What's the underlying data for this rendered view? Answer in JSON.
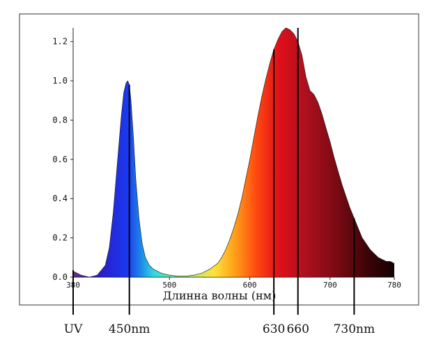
{
  "chart_data": {
    "type": "area",
    "title": "",
    "xlabel": "Длинна волны (нм)",
    "ylabel": "",
    "xlim": [
      380,
      780
    ],
    "ylim": [
      0,
      1.27
    ],
    "x_ticks": [
      380,
      500,
      600,
      700,
      780
    ],
    "x_tick_labels": [
      "380",
      "500",
      "600",
      "700",
      "780"
    ],
    "y_ticks": [
      0,
      0.2,
      0.4,
      0.6,
      0.8,
      1.0,
      1.2
    ],
    "y_tick_labels": [
      "0.0",
      "0.2",
      "0.4",
      "0.6",
      "0.8",
      "1.0",
      "1.2"
    ],
    "grid": false,
    "series": [
      {
        "x": [
          380,
          385,
          390,
          400,
          410,
          420,
          425,
          430,
          435,
          440,
          443,
          446,
          448,
          450,
          452,
          455,
          458,
          462,
          466,
          470,
          475,
          480,
          490,
          500,
          510,
          520,
          530,
          540,
          550,
          560,
          565,
          570,
          575,
          580,
          585,
          590,
          595,
          600,
          605,
          610,
          615,
          620,
          625,
          630,
          635,
          640,
          645,
          650,
          655,
          660,
          665,
          670,
          675,
          680,
          685,
          690,
          695,
          700,
          705,
          710,
          715,
          720,
          725,
          730,
          735,
          740,
          745,
          750,
          755,
          760,
          765,
          770,
          775,
          780
        ],
        "values": [
          0.03,
          0.02,
          0.01,
          0.0,
          0.01,
          0.06,
          0.15,
          0.33,
          0.58,
          0.82,
          0.94,
          0.99,
          1.0,
          0.98,
          0.9,
          0.72,
          0.5,
          0.3,
          0.17,
          0.1,
          0.06,
          0.04,
          0.02,
          0.01,
          0.005,
          0.005,
          0.01,
          0.02,
          0.04,
          0.07,
          0.1,
          0.14,
          0.19,
          0.25,
          0.32,
          0.4,
          0.5,
          0.6,
          0.71,
          0.82,
          0.92,
          1.01,
          1.09,
          1.16,
          1.21,
          1.25,
          1.27,
          1.26,
          1.24,
          1.2,
          1.13,
          1.02,
          0.95,
          0.93,
          0.89,
          0.83,
          0.76,
          0.69,
          0.61,
          0.54,
          0.47,
          0.41,
          0.35,
          0.3,
          0.25,
          0.2,
          0.17,
          0.14,
          0.12,
          0.1,
          0.09,
          0.08,
          0.08,
          0.07
        ]
      }
    ],
    "markers": [
      {
        "x": 380,
        "label": "UV"
      },
      {
        "x": 450,
        "label": "450nm"
      },
      {
        "x": 630,
        "label": "630"
      },
      {
        "x": 660,
        "label": "660"
      },
      {
        "x": 730,
        "label": "730nm"
      }
    ]
  }
}
